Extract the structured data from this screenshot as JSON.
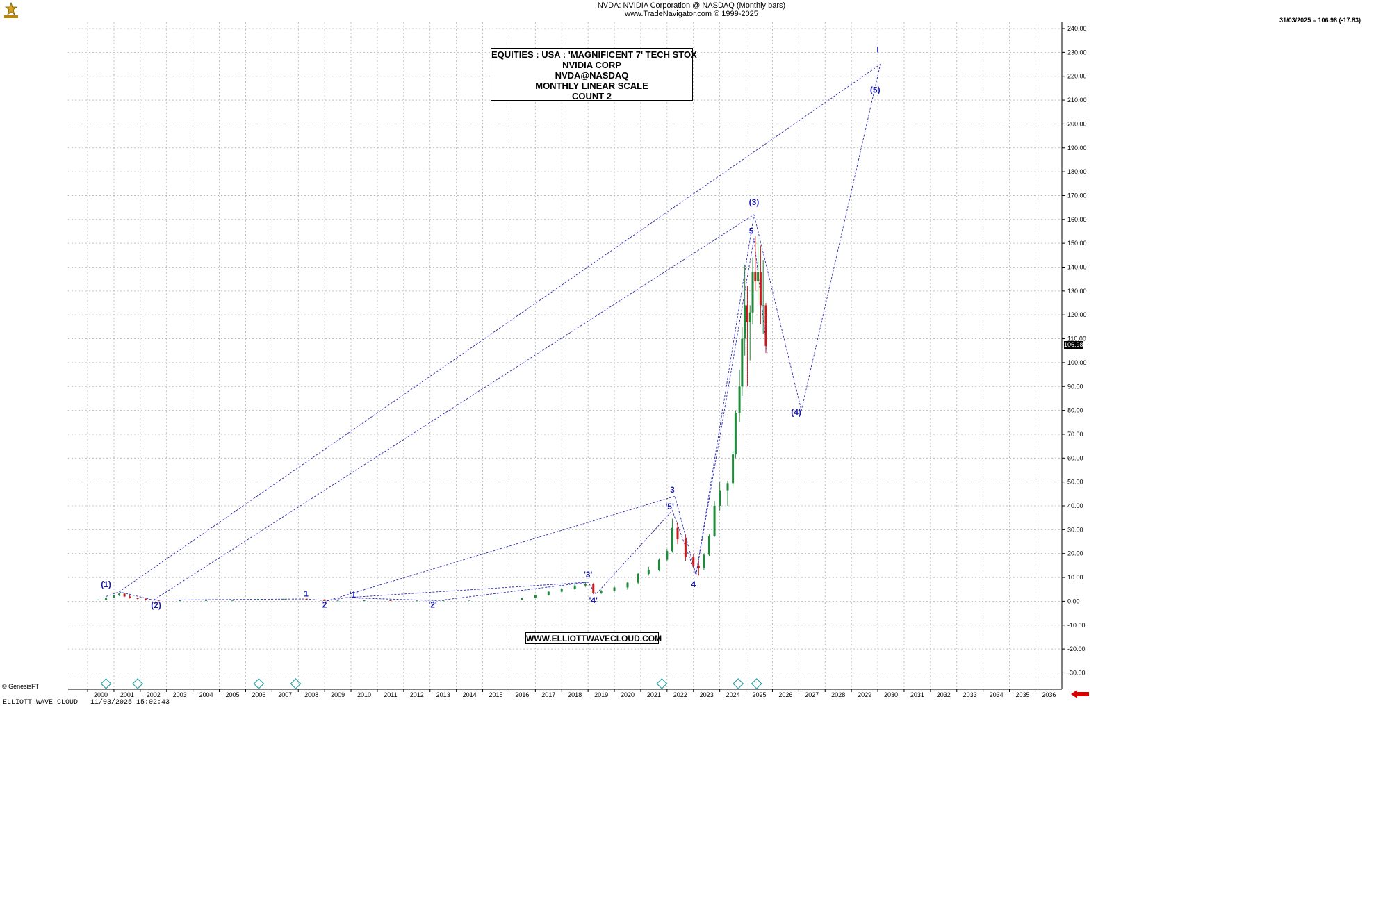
{
  "header": {
    "line1": "NVDA:  NVIDIA Corporation @ NASDAQ  (Monthly bars)",
    "line2": "www.TradeNavigator.com © 1999-2025",
    "last_price": "31/03/2025 = 106.98 (-17.83)",
    "price_tag": "106.98"
  },
  "title_box": [
    "EQUITIES : USA : 'MAGNIFICENT 7' TECH STOX",
    "NVIDIA CORP",
    "NVDA@NASDAQ",
    "MONTHLY LINEAR SCALE",
    "COUNT 2"
  ],
  "website": "WWW.ELLIOTTWAVECLOUD.COM",
  "footer": {
    "copyright": "© GenesisFT",
    "software": "ELLIOTT WAVE CLOUD   11/03/2025 15:02:43"
  },
  "colors": {
    "wave_label": "#1a1aa8",
    "wave_line": "#2a2ab4",
    "up_candle": "#1f8a3a",
    "down_candle": "#c41a1a",
    "grid": "#b0b0b0",
    "marker": "#2aa3a3"
  },
  "chart_data": {
    "type": "candlestick",
    "symbol": "NVDA",
    "y_axis": {
      "min": -30,
      "max": 240,
      "step": 10,
      "side": "right"
    },
    "x_axis": {
      "start_year": 2000,
      "end_year": 2036
    },
    "grid": true,
    "price_series": [
      [
        1999.9,
        0.5,
        0.8,
        0.4,
        0.7
      ],
      [
        2000.2,
        0.7,
        1.8,
        0.6,
        1.6
      ],
      [
        2000.5,
        1.6,
        2.8,
        1.4,
        2.5
      ],
      [
        2000.7,
        2.5,
        3.6,
        2.2,
        3.2
      ],
      [
        2000.9,
        3.2,
        3.4,
        1.8,
        2.0
      ],
      [
        2001.1,
        2.0,
        2.6,
        1.2,
        1.4
      ],
      [
        2001.4,
        1.4,
        1.6,
        0.8,
        1.0
      ],
      [
        2001.7,
        1.0,
        1.2,
        0.3,
        0.5
      ],
      [
        2002.2,
        0.5,
        0.7,
        0.2,
        0.3
      ],
      [
        2003.0,
        0.3,
        0.5,
        0.2,
        0.4
      ],
      [
        2004.0,
        0.4,
        0.5,
        0.3,
        0.4
      ],
      [
        2005.0,
        0.4,
        0.6,
        0.3,
        0.5
      ],
      [
        2006.0,
        0.5,
        0.8,
        0.4,
        0.7
      ],
      [
        2007.0,
        0.7,
        1.0,
        0.6,
        0.9
      ],
      [
        2007.8,
        0.9,
        1.1,
        0.7,
        0.8
      ],
      [
        2008.5,
        0.8,
        0.8,
        0.2,
        0.2
      ],
      [
        2009.0,
        0.2,
        0.4,
        0.2,
        0.3
      ],
      [
        2010.0,
        0.3,
        0.5,
        0.3,
        0.4
      ],
      [
        2011.0,
        0.4,
        0.6,
        0.3,
        0.3
      ],
      [
        2012.0,
        0.3,
        0.4,
        0.3,
        0.3
      ],
      [
        2013.0,
        0.3,
        0.4,
        0.3,
        0.4
      ],
      [
        2014.0,
        0.4,
        0.5,
        0.4,
        0.5
      ],
      [
        2015.0,
        0.5,
        0.7,
        0.5,
        0.7
      ],
      [
        2016.0,
        0.7,
        1.4,
        0.6,
        1.3
      ],
      [
        2016.5,
        1.3,
        2.8,
        1.2,
        2.6
      ],
      [
        2017.0,
        2.6,
        4.2,
        2.4,
        4.0
      ],
      [
        2017.5,
        4.0,
        5.6,
        3.8,
        5.2
      ],
      [
        2018.0,
        5.2,
        7.2,
        4.8,
        6.6
      ],
      [
        2018.4,
        6.6,
        8.0,
        6.0,
        7.2
      ],
      [
        2018.7,
        7.2,
        7.6,
        3.0,
        3.4
      ],
      [
        2019.0,
        3.4,
        4.8,
        3.1,
        4.4
      ],
      [
        2019.5,
        4.4,
        6.2,
        4.0,
        5.8
      ],
      [
        2020.0,
        5.8,
        8.2,
        4.8,
        7.8
      ],
      [
        2020.4,
        7.8,
        12.0,
        7.2,
        11.5
      ],
      [
        2020.8,
        11.5,
        14.5,
        10.8,
        13.2
      ],
      [
        2021.2,
        13.2,
        18.0,
        12.6,
        17.4
      ],
      [
        2021.5,
        17.4,
        22.0,
        16.8,
        21.0
      ],
      [
        2021.7,
        21.0,
        34.6,
        20.4,
        30.8
      ],
      [
        2021.9,
        30.8,
        33.0,
        24.0,
        26.0
      ],
      [
        2022.2,
        26.0,
        28.0,
        17.0,
        18.5
      ],
      [
        2022.5,
        18.5,
        20.0,
        14.0,
        15.0
      ],
      [
        2022.7,
        15.0,
        17.0,
        10.8,
        13.8
      ],
      [
        2022.9,
        13.8,
        20.0,
        13.2,
        19.5
      ],
      [
        2023.1,
        19.5,
        28.0,
        19.0,
        27.5
      ],
      [
        2023.3,
        27.5,
        42.0,
        27.0,
        40.0
      ],
      [
        2023.5,
        40.0,
        50.0,
        38.0,
        46.5
      ],
      [
        2023.8,
        46.5,
        50.5,
        40.0,
        49.5
      ],
      [
        2024.0,
        49.5,
        63.0,
        47.5,
        61.5
      ],
      [
        2024.1,
        61.5,
        80.0,
        60.0,
        79.0
      ],
      [
        2024.25,
        79.0,
        97.0,
        75.0,
        90.0
      ],
      [
        2024.35,
        90.0,
        115.0,
        86.0,
        110.0
      ],
      [
        2024.45,
        110.0,
        141.0,
        103.0,
        124.0
      ],
      [
        2024.55,
        124.0,
        132.0,
        90.0,
        117.0
      ],
      [
        2024.65,
        117.0,
        124.0,
        101.0,
        121.0
      ],
      [
        2024.75,
        121.0,
        144.0,
        116.0,
        138.0
      ],
      [
        2024.85,
        138.0,
        153.0,
        130.0,
        134.0
      ],
      [
        2024.95,
        134.0,
        152.0,
        126.0,
        138.0
      ],
      [
        2025.05,
        138.0,
        149.0,
        116.0,
        124.0
      ],
      [
        2025.15,
        124.0,
        143.0,
        112.0,
        124.0
      ],
      [
        2025.25,
        124.0,
        125.0,
        104.0,
        106.98
      ]
    ],
    "wave_lines": [
      [
        [
          2000.2,
          2.0
        ],
        [
          2000.7,
          4.0
        ],
        [
          2002.0,
          0.5
        ],
        [
          2007.8,
          1.0
        ],
        [
          2008.6,
          0.2
        ],
        [
          2021.8,
          44.0
        ],
        [
          2022.6,
          11.0
        ],
        [
          2024.8,
          162.0
        ],
        [
          2026.6,
          80.0
        ],
        [
          2029.6,
          225.0
        ]
      ],
      [
        [
          2000.7,
          4.0
        ],
        [
          2029.6,
          225.0
        ]
      ],
      [
        [
          2002.0,
          0.5
        ],
        [
          2024.8,
          162.0
        ]
      ],
      [
        [
          2008.6,
          0.2
        ],
        [
          2009.3,
          1.5
        ],
        [
          2012.8,
          0.3
        ],
        [
          2018.5,
          8.0
        ],
        [
          2018.8,
          3.0
        ],
        [
          2021.7,
          38.0
        ],
        [
          2022.6,
          11.0
        ]
      ],
      [
        [
          2009.3,
          1.5
        ],
        [
          2018.5,
          8.0
        ]
      ],
      [
        [
          2022.6,
          11.0
        ],
        [
          2024.8,
          152.0
        ],
        [
          2025.3,
          104.0
        ]
      ]
    ],
    "wave_labels": [
      {
        "text": "(1)",
        "x": 2000.2,
        "y": 6.0
      },
      {
        "text": "(2)",
        "x": 2002.1,
        "y": -2.8
      },
      {
        "text": "1",
        "x": 2007.8,
        "y": 2.0
      },
      {
        "text": "2",
        "x": 2008.5,
        "y": -2.6
      },
      {
        "text": "'1'",
        "x": 2009.6,
        "y": 1.5
      },
      {
        "text": "'2'",
        "x": 2012.6,
        "y": -2.6
      },
      {
        "text": "'3'",
        "x": 2018.5,
        "y": 10.0
      },
      {
        "text": "'4'",
        "x": 2018.7,
        "y": -0.8
      },
      {
        "text": "'5'",
        "x": 2021.6,
        "y": 38.5
      },
      {
        "text": "3",
        "x": 2021.7,
        "y": 45.5
      },
      {
        "text": "4",
        "x": 2022.5,
        "y": 6.0
      },
      {
        "text": "5",
        "x": 2024.7,
        "y": 154.0
      },
      {
        "text": "(3)",
        "x": 2024.8,
        "y": 166.0
      },
      {
        "text": "(4)",
        "x": 2026.4,
        "y": 78.0
      },
      {
        "text": "(5)",
        "x": 2029.4,
        "y": 213.0
      },
      {
        "text": "I",
        "x": 2029.5,
        "y": 230.0
      }
    ],
    "signal_markers": [
      2000.2,
      2001.4,
      2006.0,
      2007.4,
      2021.3,
      2024.2,
      2024.9
    ]
  }
}
